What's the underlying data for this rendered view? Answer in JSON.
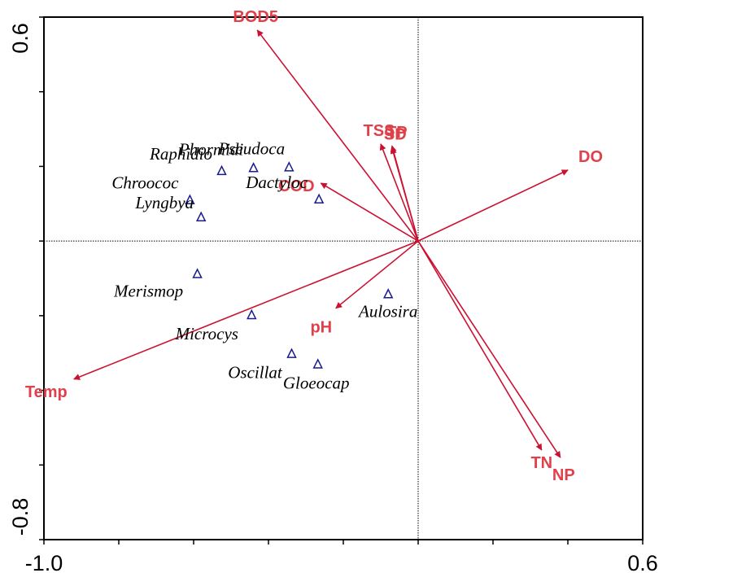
{
  "colors": {
    "arrow": "#cc1030",
    "env_label": "#e0404a",
    "species_marker": "#1a1a8c",
    "axis": "#000000"
  },
  "chart_data": {
    "type": "scatter",
    "subtype": "ordination-biplot",
    "title": "",
    "xlabel": "",
    "ylabel": "",
    "xlim": [
      -1.0,
      0.6
    ],
    "ylim": [
      -0.8,
      0.6
    ],
    "x_tick_labels": [
      {
        "value": -1.0,
        "label": "-1.0"
      },
      {
        "value": 0.6,
        "label": "0.6"
      }
    ],
    "y_tick_labels": [
      {
        "value": 0.6,
        "label": "0.6"
      },
      {
        "value": -0.8,
        "label": "-0.8"
      }
    ],
    "x_minor_ticks": [
      -0.8,
      -0.6,
      -0.4,
      -0.2,
      0.2,
      0.4
    ],
    "y_minor_ticks": [
      0.4,
      0.2,
      -0.2,
      -0.4,
      -0.6
    ],
    "origin_lines": true,
    "environment_vectors": [
      {
        "name": "BOD5",
        "x": -0.43,
        "y": 0.565
      },
      {
        "name": "TSS",
        "x": -0.1,
        "y": 0.26
      },
      {
        "name": "TP",
        "x": -0.07,
        "y": 0.255
      },
      {
        "name": "SD",
        "x": -0.07,
        "y": 0.25
      },
      {
        "name": "COD",
        "x": -0.26,
        "y": 0.155
      },
      {
        "name": "DO",
        "x": 0.4,
        "y": 0.19
      },
      {
        "name": "pH",
        "x": -0.22,
        "y": -0.18
      },
      {
        "name": "Temp",
        "x": -0.92,
        "y": -0.37
      },
      {
        "name": "TN",
        "x": 0.33,
        "y": -0.56
      },
      {
        "name": "NP",
        "x": 0.38,
        "y": -0.58
      }
    ],
    "species": [
      {
        "name": "Raphidio",
        "x": -0.525,
        "y": 0.188
      },
      {
        "name": "Phormidi",
        "x": -0.44,
        "y": 0.196
      },
      {
        "name": "Pseudoca",
        "x": -0.345,
        "y": 0.198
      },
      {
        "name": "Dactyloc",
        "x": -0.265,
        "y": 0.112
      },
      {
        "name": "Chroococ",
        "x": -0.61,
        "y": 0.11
      },
      {
        "name": "Lyngbya",
        "x": -0.58,
        "y": 0.064
      },
      {
        "name": "Merismop",
        "x": -0.59,
        "y": -0.088
      },
      {
        "name": "Microcys",
        "x": -0.445,
        "y": -0.198
      },
      {
        "name": "Aulosira",
        "x": -0.08,
        "y": -0.142
      },
      {
        "name": "Oscillat",
        "x": -0.338,
        "y": -0.302
      },
      {
        "name": "Gloeocap",
        "x": -0.268,
        "y": -0.33
      }
    ]
  }
}
